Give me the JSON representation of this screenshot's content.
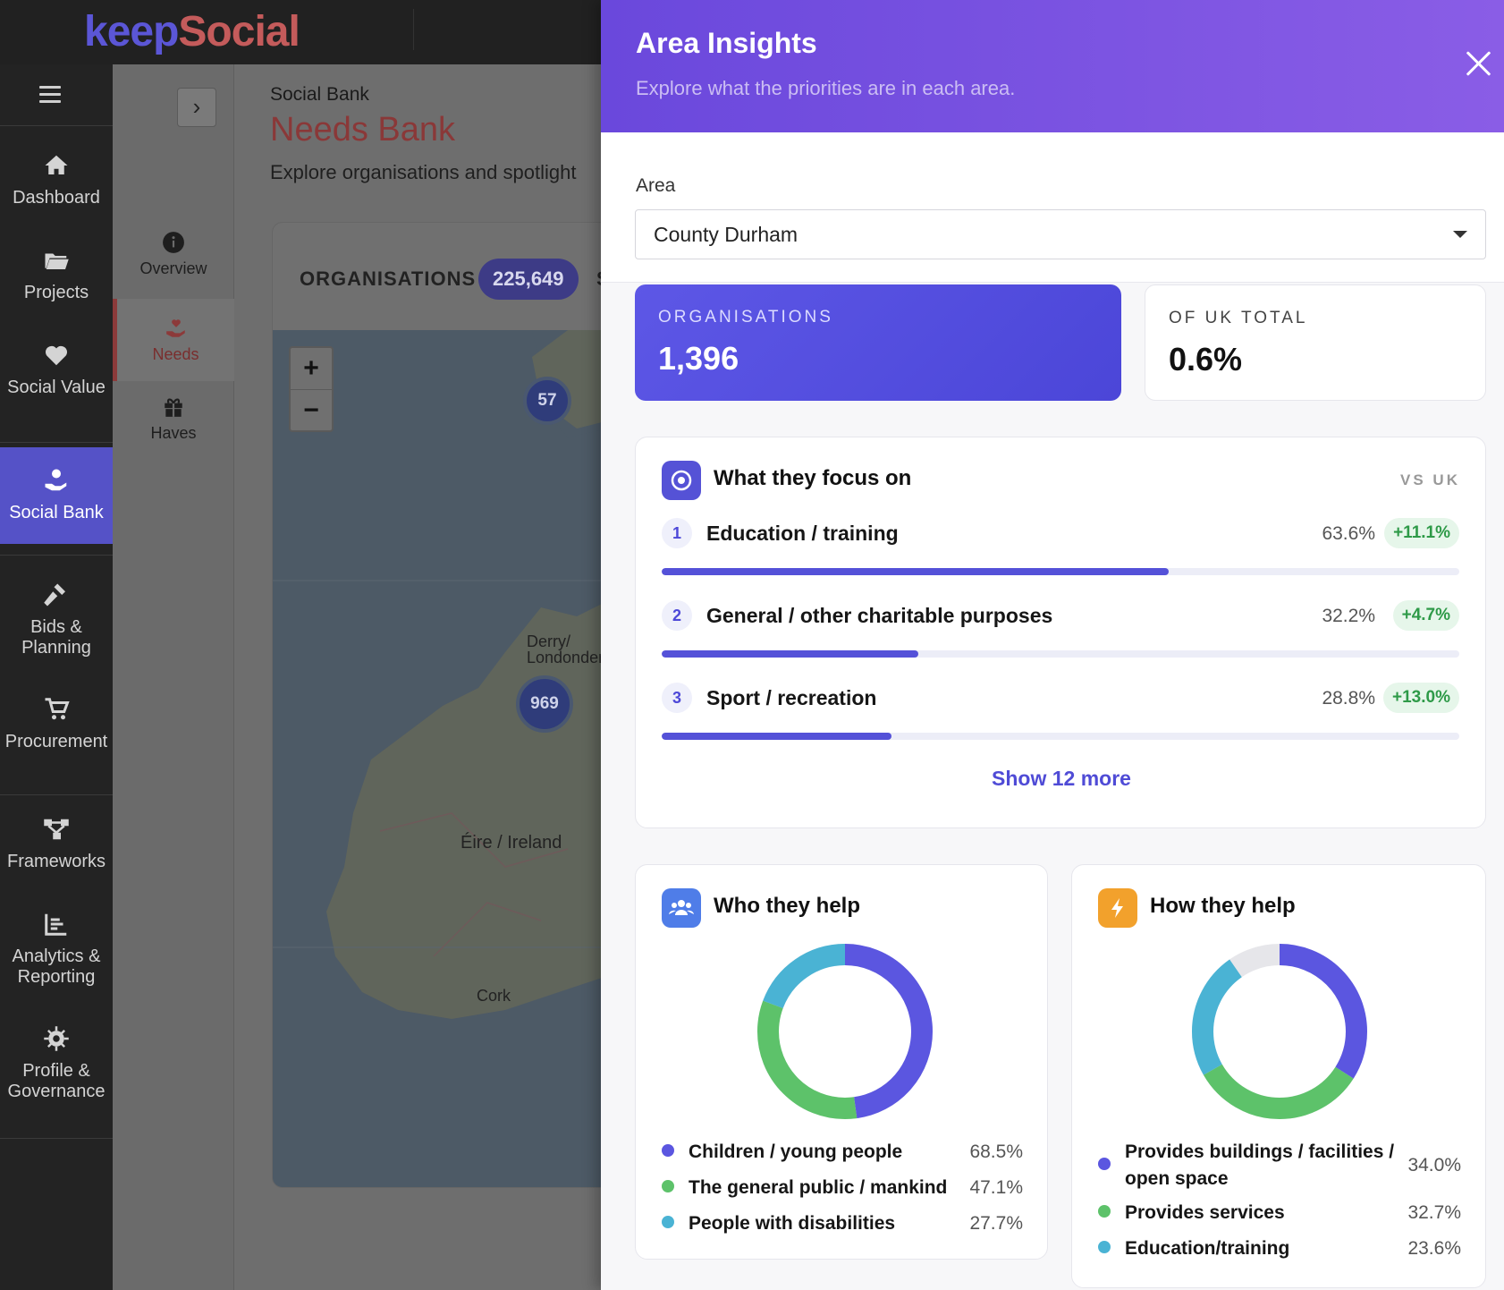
{
  "brand": {
    "part1": "keep",
    "part2": "Social"
  },
  "nav": {
    "items": [
      {
        "label": "Dashboard",
        "icon": "home-icon"
      },
      {
        "label": "Projects",
        "icon": "folder-icon"
      },
      {
        "label": "Social Value",
        "icon": "heart-icon"
      },
      {
        "label": "Social Bank",
        "icon": "hand-heart-icon",
        "active": true
      },
      {
        "label_line1": "Bids &",
        "label_line2": "Planning",
        "icon": "gavel-icon"
      },
      {
        "label": "Procurement",
        "icon": "cart-icon"
      },
      {
        "label": "Frameworks",
        "icon": "network-icon"
      },
      {
        "label_line1": "Analytics &",
        "label_line2": "Reporting",
        "icon": "chart-icon"
      },
      {
        "label_line1": "Profile &",
        "label_line2": "Governance",
        "icon": "gear-icon"
      }
    ]
  },
  "subnav": {
    "items": [
      {
        "label": "Overview",
        "icon": "info-icon"
      },
      {
        "label": "Needs",
        "icon": "hand-heart-icon",
        "active": true
      },
      {
        "label": "Haves",
        "icon": "gift-icon"
      }
    ]
  },
  "main": {
    "breadcrumb": "Social Bank",
    "title": "Needs Bank",
    "subtitle": "Explore organisations and spotlight",
    "orgs_label": "ORGANISATIONS",
    "orgs_count": "225,649",
    "orgs_trailing": "S",
    "map": {
      "zoom_in": "+",
      "zoom_out": "−",
      "clusters": [
        "57",
        "969"
      ],
      "labels": [
        "Derry/",
        "Londonderr",
        "Éire / Ireland",
        "Cork"
      ]
    }
  },
  "drawer": {
    "title": "Area Insights",
    "subtitle": "Explore what the priorities are in each area.",
    "area_label": "Area",
    "area_value": "County Durham",
    "stats": {
      "organisations_label": "ORGANISATIONS",
      "organisations_value": "1,396",
      "uk_total_label": "OF UK TOTAL",
      "uk_total_value": "0.6%"
    },
    "focus": {
      "title": "What they focus on",
      "vs_label": "VS UK",
      "rows": [
        {
          "rank": "1",
          "name": "Education / training",
          "pct": "63.6%",
          "delta": "+11.1%",
          "share": 0.636
        },
        {
          "rank": "2",
          "name": "General / other charitable purposes",
          "pct": "32.2%",
          "delta": "+4.7%",
          "share": 0.322
        },
        {
          "rank": "3",
          "name": "Sport / recreation",
          "pct": "28.8%",
          "delta": "+13.0%",
          "share": 0.288
        }
      ],
      "show_more": "Show 12 more"
    },
    "who": {
      "title": "Who they help",
      "legend": [
        {
          "name": "Children / young people",
          "pct": "68.5%",
          "value": 68.5,
          "color": "#5b56e0"
        },
        {
          "name": "The general public / mankind",
          "pct": "47.1%",
          "value": 47.1,
          "color": "#5dc26a"
        },
        {
          "name": "People with disabilities",
          "pct": "27.7%",
          "value": 27.7,
          "color": "#4ab3d4"
        }
      ]
    },
    "how": {
      "title": "How they help",
      "legend": [
        {
          "name_line1": "Provides buildings / facilities /",
          "name_line2": "open space",
          "pct": "34.0%",
          "value": 34.0,
          "color": "#5b56e0"
        },
        {
          "name": "Provides services",
          "pct": "32.7%",
          "value": 32.7,
          "color": "#5dc26a"
        },
        {
          "name": "Education/training",
          "pct": "23.6%",
          "value": 23.6,
          "color": "#4ab3d4"
        }
      ]
    },
    "colors": {
      "accent": "#5451d8",
      "header_start": "#6a48dc",
      "header_end": "#8a5de6",
      "positive": "#2e9a48"
    }
  }
}
